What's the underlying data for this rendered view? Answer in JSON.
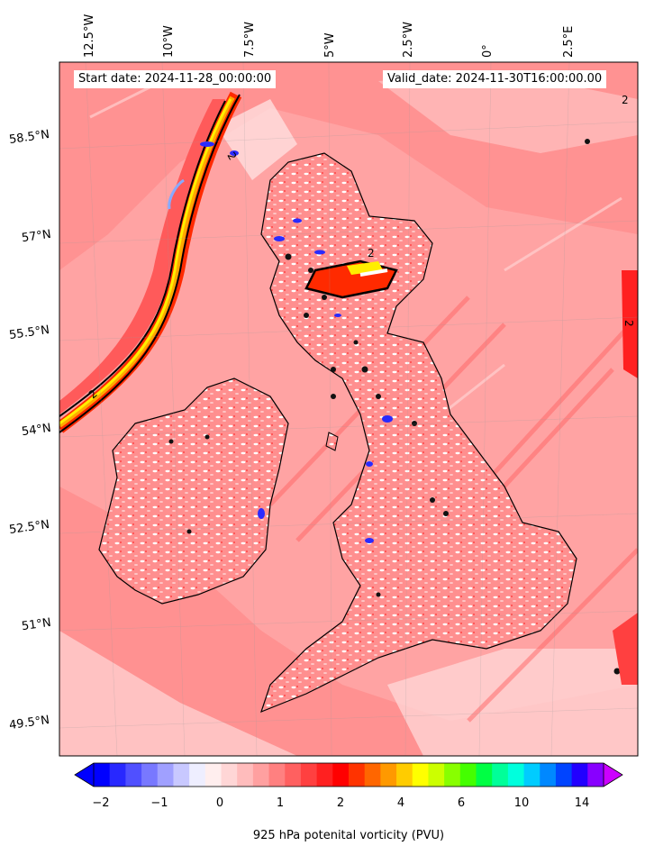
{
  "header": {
    "start_date": "Start date: 2024-11-28_00:00:00",
    "valid_date": "Valid_date: 2024-11-30T16:00:00.00"
  },
  "axes": {
    "lon_labels": [
      "12.5°W",
      "10°W",
      "7.5°W",
      "5°W",
      "2.5°W",
      "0°",
      "2.5°E"
    ],
    "lat_labels": [
      "58.5°N",
      "57°N",
      "55.5°N",
      "54°N",
      "52.5°N",
      "51°N",
      "49.5°N"
    ]
  },
  "colorbar": {
    "title": "925 hPa potenital vorticity (PVU)",
    "tick_labels": [
      "−2",
      "−1",
      "0",
      "1",
      "2",
      "4",
      "6",
      "10",
      "14"
    ],
    "colors": [
      "#0000ff",
      "#2828ff",
      "#5050ff",
      "#7878ff",
      "#a0a0ff",
      "#c8c8ff",
      "#eeeeff",
      "#ffeeee",
      "#ffd6d6",
      "#ffbcbc",
      "#ffa0a0",
      "#ff8080",
      "#ff6060",
      "#ff4040",
      "#ff2020",
      "#ff0000",
      "#ff3300",
      "#ff6600",
      "#ff9900",
      "#ffcc00",
      "#ffff00",
      "#ccff00",
      "#88ff00",
      "#44ff00",
      "#00ff44",
      "#00ff99",
      "#00ffdd",
      "#00ccff",
      "#0088ff",
      "#0044ff",
      "#2200ff",
      "#8800ff"
    ],
    "under_color": "#0000ff",
    "over_color": "#cc00ff"
  },
  "contour_label": "2"
}
